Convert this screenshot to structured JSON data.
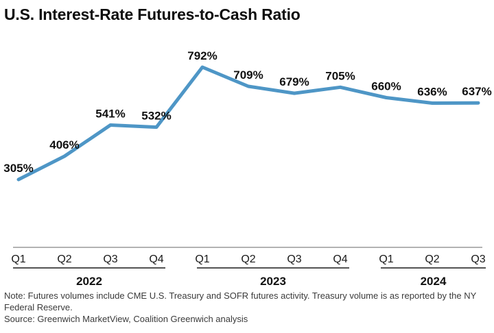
{
  "chart_data": {
    "type": "line",
    "title": "U.S. Interest-Rate Futures-to-Cash Ratio",
    "unit": "%",
    "values": [
      305,
      406,
      541,
      532,
      792,
      709,
      679,
      705,
      660,
      636,
      637
    ],
    "labels": [
      "305%",
      "406%",
      "541%",
      "532%",
      "792%",
      "709%",
      "679%",
      "705%",
      "660%",
      "636%",
      "637%"
    ],
    "x_axis": {
      "quarters": [
        "Q1",
        "Q2",
        "Q3",
        "Q4",
        "Q1",
        "Q2",
        "Q3",
        "Q4",
        "Q1",
        "Q2",
        "Q3"
      ],
      "year_groups": [
        {
          "label": "2022",
          "span": [
            0,
            3
          ]
        },
        {
          "label": "2023",
          "span": [
            4,
            7
          ]
        },
        {
          "label": "2024",
          "span": [
            8,
            10
          ]
        }
      ]
    },
    "y_axis_visible": false,
    "grid": false,
    "legend": false,
    "approx_value_range": [
      305,
      792
    ]
  },
  "colors": {
    "line": "#4E96C6",
    "axis_line": "#B2B2B2",
    "year_bracket": "#1A1A1A",
    "label_text": "#111111",
    "footnote_text": "#3A3A3A"
  },
  "footer": {
    "note": "Note: Futures volumes include CME U.S. Treasury and SOFR futures activity. Treasury volume is as reported by the NY Federal Reserve.",
    "source": "Source: Greenwich MarketView, Coalition Greenwich analysis"
  }
}
